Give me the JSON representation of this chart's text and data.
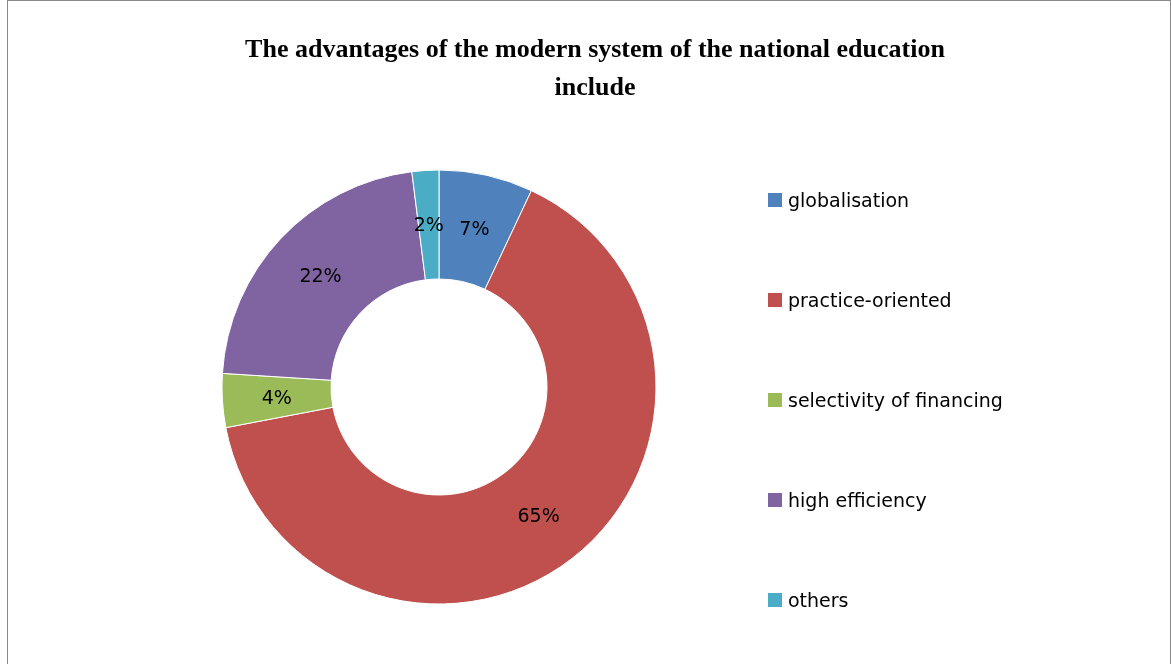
{
  "chart_data": {
    "type": "donut",
    "title": "The advantages of the modern system of the national education include",
    "categories": [
      "globalisation",
      "practice-oriented",
      "selectivity of financing",
      "high efficiency",
      "others"
    ],
    "values": [
      7,
      65,
      4,
      22,
      2
    ],
    "value_labels": [
      "7%",
      "65%",
      "4%",
      "22%",
      "2%"
    ],
    "colors": [
      "#4f81bd",
      "#c0504d",
      "#9bbb59",
      "#8064a2",
      "#4bacc6"
    ],
    "legend": "right"
  }
}
